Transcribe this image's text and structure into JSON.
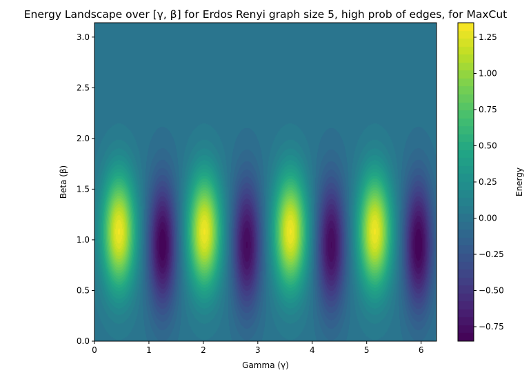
{
  "chart_data": {
    "type": "heatmap",
    "title": "Energy Landscape over [γ, β] for Erdos Renyi graph size 5, high prob of edges, for MaxCut",
    "xlabel": "Gamma (γ)",
    "ylabel": "Beta (β)",
    "colorbar_label": "Energy",
    "colormap": "viridis",
    "xlim": [
      0,
      6.283
    ],
    "ylim": [
      0,
      3.1416
    ],
    "xticks": [
      "0",
      "1",
      "2",
      "3",
      "4",
      "5",
      "6"
    ],
    "yticks": [
      "0.0",
      "0.5",
      "1.0",
      "1.5",
      "2.0",
      "2.5",
      "3.0"
    ],
    "colorbar_ticks": [
      "−0.75",
      "−0.50",
      "−0.25",
      "0.00",
      "0.25",
      "0.50",
      "0.75",
      "1.00",
      "1.25"
    ],
    "clim": [
      -0.85,
      1.35
    ],
    "maxima": [
      {
        "gamma": 0.45,
        "beta": 1.08,
        "energy": 1.3
      },
      {
        "gamma": 2.02,
        "beta": 1.08,
        "energy": 1.3
      },
      {
        "gamma": 3.6,
        "beta": 1.08,
        "energy": 1.3
      },
      {
        "gamma": 5.15,
        "beta": 1.08,
        "energy": 1.3
      }
    ],
    "minima": [
      {
        "gamma": 1.25,
        "beta": 0.95,
        "energy": -0.85
      },
      {
        "gamma": 2.8,
        "beta": 0.95,
        "energy": -0.8
      },
      {
        "gamma": 4.35,
        "beta": 0.95,
        "energy": -0.8
      },
      {
        "gamma": 5.95,
        "beta": 0.95,
        "energy": -0.85
      }
    ],
    "background_energy": 0.0
  }
}
